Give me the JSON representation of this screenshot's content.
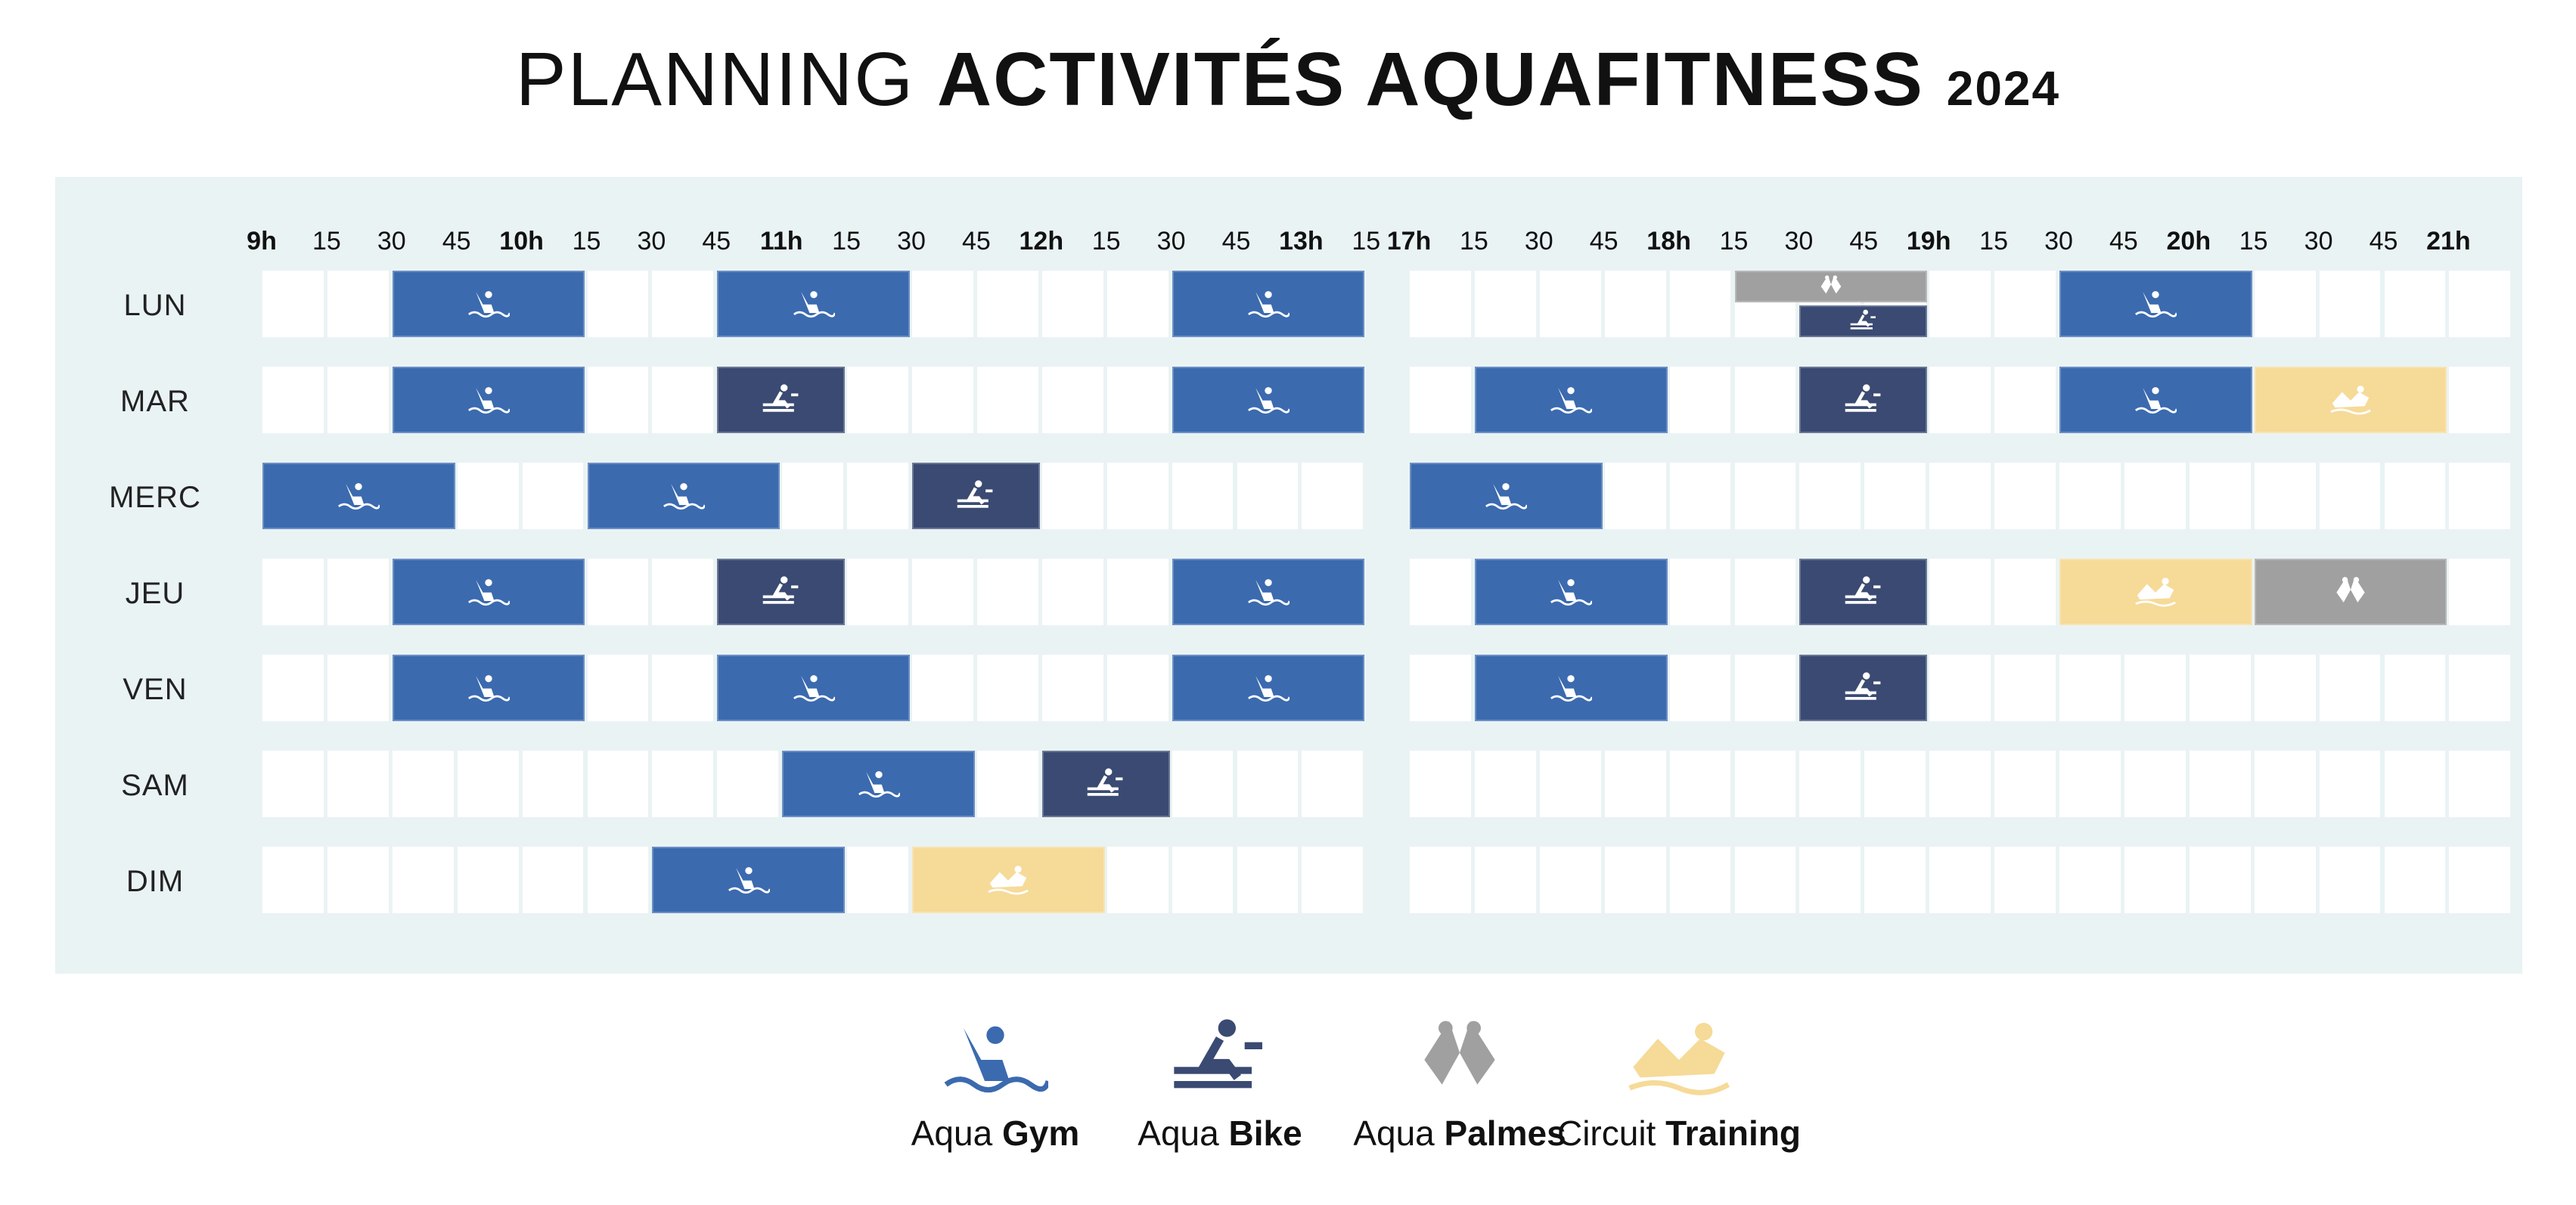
{
  "title": {
    "part1": "PLANNING ",
    "part2": "ACTIVITÉS AQUAFITNESS ",
    "year": "2024"
  },
  "colors": {
    "gym": "#3b6aaf",
    "bike": "#3a4a72",
    "palmes": "#a0a0a0",
    "training": "#f6da98"
  },
  "icons": {
    "gym": "swimmer-wave-icon",
    "bike": "aqua-bike-icon",
    "palmes": "flippers-icon",
    "training": "circuit-training-icon"
  },
  "time_labels": [
    {
      "text": "9h",
      "major": true
    },
    {
      "text": "15"
    },
    {
      "text": "30"
    },
    {
      "text": "45"
    },
    {
      "text": "10h",
      "major": true
    },
    {
      "text": "15"
    },
    {
      "text": "30"
    },
    {
      "text": "45"
    },
    {
      "text": "11h",
      "major": true
    },
    {
      "text": "15"
    },
    {
      "text": "30"
    },
    {
      "text": "45"
    },
    {
      "text": "12h",
      "major": true
    },
    {
      "text": "15"
    },
    {
      "text": "30"
    },
    {
      "text": "45"
    },
    {
      "text": "13h",
      "major": true
    },
    {
      "text": "15"
    },
    {
      "text": "17h",
      "major": true
    },
    {
      "text": "15"
    },
    {
      "text": "30"
    },
    {
      "text": "45"
    },
    {
      "text": "18h",
      "major": true
    },
    {
      "text": "15"
    },
    {
      "text": "30"
    },
    {
      "text": "45"
    },
    {
      "text": "19h",
      "major": true
    },
    {
      "text": "15"
    },
    {
      "text": "30"
    },
    {
      "text": "45"
    },
    {
      "text": "20h",
      "major": true
    },
    {
      "text": "15"
    },
    {
      "text": "30"
    },
    {
      "text": "45"
    },
    {
      "text": "21h",
      "major": true
    }
  ],
  "days": [
    {
      "label": "LUN",
      "sessions": [
        {
          "activity": "gym",
          "start": "9:30",
          "end": "10:15"
        },
        {
          "activity": "gym",
          "start": "10:45",
          "end": "11:30"
        },
        {
          "activity": "gym",
          "start": "12:30",
          "end": "13:15"
        },
        {
          "activity": "palmes",
          "start": "18:15",
          "end": "19:00",
          "part": "top"
        },
        {
          "activity": "bike",
          "start": "18:30",
          "end": "19:00",
          "part": "bottom"
        },
        {
          "activity": "gym",
          "start": "19:30",
          "end": "20:15"
        }
      ]
    },
    {
      "label": "MAR",
      "sessions": [
        {
          "activity": "gym",
          "start": "9:30",
          "end": "10:15"
        },
        {
          "activity": "bike",
          "start": "10:45",
          "end": "11:15"
        },
        {
          "activity": "gym",
          "start": "12:30",
          "end": "13:15"
        },
        {
          "activity": "gym",
          "start": "17:15",
          "end": "18:00"
        },
        {
          "activity": "bike",
          "start": "18:30",
          "end": "19:00"
        },
        {
          "activity": "gym",
          "start": "19:30",
          "end": "20:15"
        },
        {
          "activity": "training",
          "start": "20:15",
          "end": "21:00"
        }
      ]
    },
    {
      "label": "MERC",
      "sessions": [
        {
          "activity": "gym",
          "start": "9:00",
          "end": "9:45"
        },
        {
          "activity": "gym",
          "start": "10:15",
          "end": "11:00"
        },
        {
          "activity": "bike",
          "start": "11:30",
          "end": "12:00"
        },
        {
          "activity": "gym",
          "start": "17:00",
          "end": "17:45"
        }
      ]
    },
    {
      "label": "JEU",
      "sessions": [
        {
          "activity": "gym",
          "start": "9:30",
          "end": "10:15"
        },
        {
          "activity": "bike",
          "start": "10:45",
          "end": "11:15"
        },
        {
          "activity": "gym",
          "start": "12:30",
          "end": "13:15"
        },
        {
          "activity": "gym",
          "start": "17:15",
          "end": "18:00"
        },
        {
          "activity": "bike",
          "start": "18:30",
          "end": "19:00"
        },
        {
          "activity": "training",
          "start": "19:30",
          "end": "20:15"
        },
        {
          "activity": "palmes",
          "start": "20:15",
          "end": "21:00"
        }
      ]
    },
    {
      "label": "VEN",
      "sessions": [
        {
          "activity": "gym",
          "start": "9:30",
          "end": "10:15"
        },
        {
          "activity": "gym",
          "start": "10:45",
          "end": "11:30"
        },
        {
          "activity": "gym",
          "start": "12:30",
          "end": "13:15"
        },
        {
          "activity": "gym",
          "start": "17:15",
          "end": "18:00"
        },
        {
          "activity": "bike",
          "start": "18:30",
          "end": "19:00"
        }
      ]
    },
    {
      "label": "SAM",
      "sessions": [
        {
          "activity": "gym",
          "start": "11:00",
          "end": "11:45"
        },
        {
          "activity": "bike",
          "start": "12:00",
          "end": "12:30"
        }
      ]
    },
    {
      "label": "DIM",
      "sessions": [
        {
          "activity": "gym",
          "start": "10:30",
          "end": "11:15"
        },
        {
          "activity": "training",
          "start": "11:30",
          "end": "12:15"
        }
      ]
    }
  ],
  "legend": [
    {
      "activity": "gym",
      "word1": "Aqua ",
      "word2": "Gym"
    },
    {
      "activity": "bike",
      "word1": "Aqua ",
      "word2": "Bike"
    },
    {
      "activity": "palmes",
      "word1": "Aqua ",
      "word2": "Palmes"
    },
    {
      "activity": "training",
      "word1": "Circuit ",
      "word2": "Training"
    }
  ]
}
